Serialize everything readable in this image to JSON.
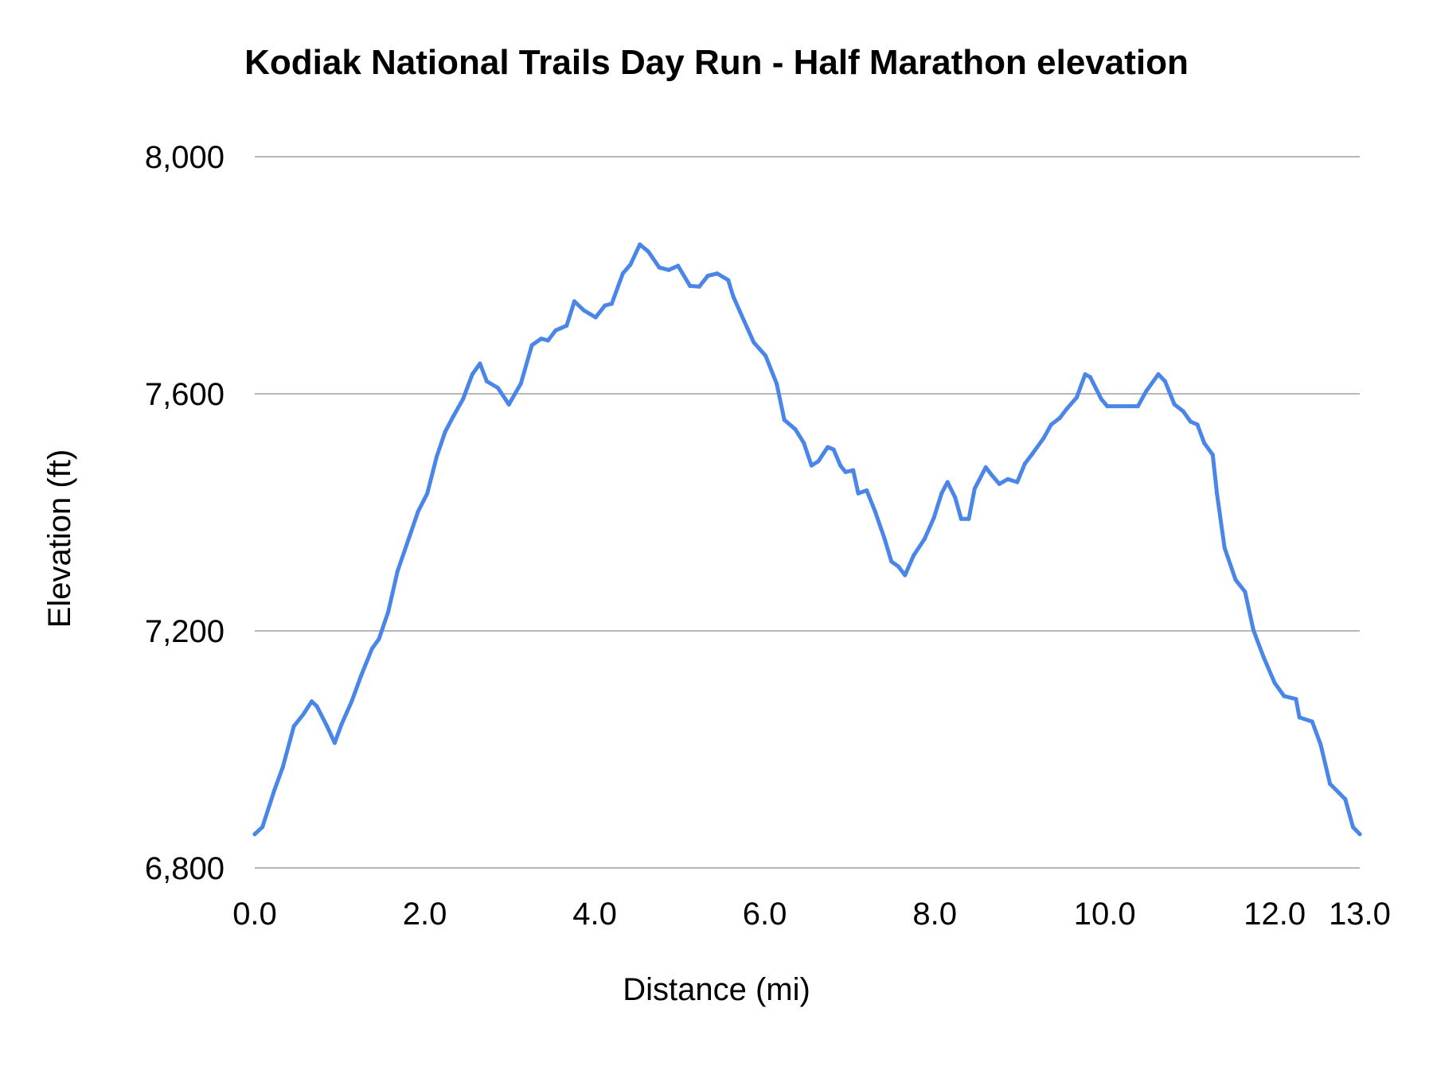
{
  "chart_data": {
    "type": "line",
    "title": "Kodiak National Trails Day Run - Half Marathon elevation",
    "xlabel": "Distance (mi)",
    "ylabel": "Elevation (ft)",
    "xlim": [
      0,
      13
    ],
    "ylim": [
      6800,
      8000
    ],
    "xticks": [
      0,
      2,
      4,
      6,
      8,
      10,
      12,
      13
    ],
    "xtick_labels": [
      "0.0",
      "2.0",
      "4.0",
      "6.0",
      "8.0",
      "10.0",
      "12.0",
      "13.0"
    ],
    "yticks": [
      6800,
      7200,
      7600,
      8000
    ],
    "ytick_labels": [
      "6,800",
      "7,200",
      "7,600",
      "8,000"
    ],
    "grid": "horizontal",
    "legend": "none",
    "line_color": "#4a86e8",
    "series": [
      {
        "x": [
          0,
          0.09,
          0.23,
          0.33,
          0.46,
          0.57,
          0.67,
          0.73,
          0.85,
          0.94,
          1.02,
          1.14,
          1.25,
          1.38,
          1.46,
          1.57,
          1.68,
          1.81,
          1.92,
          2.03,
          2.14,
          2.24,
          2.34,
          2.45,
          2.56,
          2.65,
          2.73,
          2.86,
          2.99,
          3.13,
          3.26,
          3.37,
          3.45,
          3.54,
          3.67,
          3.76,
          3.87,
          4.01,
          4.12,
          4.2,
          4.33,
          4.42,
          4.53,
          4.63,
          4.76,
          4.87,
          4.98,
          5.12,
          5.23,
          5.33,
          5.44,
          5.57,
          5.63,
          5.76,
          5.87,
          6.01,
          6.14,
          6.23,
          6.36,
          6.46,
          6.55,
          6.63,
          6.74,
          6.81,
          6.89,
          6.95,
          7.04,
          7.1,
          7.2,
          7.3,
          7.41,
          7.49,
          7.57,
          7.65,
          7.75,
          7.88,
          7.99,
          8.08,
          8.15,
          8.24,
          8.31,
          8.4,
          8.47,
          8.6,
          8.67,
          8.76,
          8.86,
          8.97,
          9.06,
          9.15,
          9.28,
          9.37,
          9.47,
          9.55,
          9.67,
          9.77,
          9.83,
          9.96,
          10.03,
          10.39,
          10.49,
          10.63,
          10.71,
          10.82,
          10.92,
          11.01,
          11.09,
          11.17,
          11.27,
          11.32,
          11.41,
          11.54,
          11.65,
          11.75,
          11.87,
          12.0,
          12.11,
          12.25,
          12.29,
          12.44,
          12.54,
          12.65,
          12.76,
          12.83,
          12.92,
          13.0
        ],
        "y": [
          6857,
          6869,
          6931,
          6970,
          7039,
          7059,
          7081,
          7073,
          7039,
          7011,
          7042,
          7081,
          7124,
          7170,
          7186,
          7232,
          7301,
          7355,
          7401,
          7432,
          7494,
          7536,
          7563,
          7591,
          7633,
          7651,
          7621,
          7610,
          7582,
          7617,
          7682,
          7693,
          7690,
          7707,
          7715,
          7756,
          7741,
          7729,
          7749,
          7752,
          7803,
          7818,
          7852,
          7840,
          7813,
          7809,
          7816,
          7782,
          7781,
          7799,
          7803,
          7792,
          7764,
          7722,
          7687,
          7664,
          7617,
          7556,
          7540,
          7517,
          7479,
          7486,
          7510,
          7506,
          7479,
          7468,
          7471,
          7432,
          7437,
          7401,
          7355,
          7317,
          7309,
          7294,
          7327,
          7355,
          7391,
          7432,
          7451,
          7425,
          7389,
          7389,
          7440,
          7476,
          7463,
          7448,
          7456,
          7451,
          7482,
          7499,
          7525,
          7548,
          7559,
          7574,
          7594,
          7633,
          7628,
          7591,
          7579,
          7579,
          7605,
          7633,
          7621,
          7582,
          7571,
          7553,
          7548,
          7517,
          7497,
          7432,
          7340,
          7286,
          7266,
          7201,
          7155,
          7112,
          7090,
          7085,
          7054,
          7047,
          7008,
          6942,
          6926,
          6916,
          6869,
          6857
        ]
      }
    ]
  }
}
